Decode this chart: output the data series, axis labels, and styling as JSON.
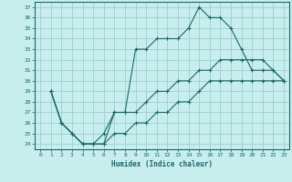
{
  "title": "",
  "xlabel": "Humidex (Indice chaleur)",
  "ylabel": "",
  "bg_color": "#c8eded",
  "grid_color": "#9ecece",
  "line_color": "#1a6868",
  "xlim": [
    -0.5,
    23.5
  ],
  "ylim": [
    23.5,
    37.5
  ],
  "xticks": [
    0,
    1,
    2,
    3,
    4,
    5,
    6,
    7,
    8,
    9,
    10,
    11,
    12,
    13,
    14,
    15,
    16,
    17,
    18,
    19,
    20,
    21,
    22,
    23
  ],
  "yticks": [
    24,
    25,
    26,
    27,
    28,
    29,
    30,
    31,
    32,
    33,
    34,
    35,
    36,
    37
  ],
  "line1_x": [
    1,
    2,
    3,
    4,
    5,
    6,
    7,
    8,
    9,
    10,
    11,
    12,
    13,
    14,
    15,
    16,
    17,
    18,
    19,
    20,
    21,
    22,
    23
  ],
  "line1_y": [
    29,
    26,
    25,
    24,
    24,
    24,
    27,
    27,
    33,
    33,
    34,
    34,
    34,
    35,
    37,
    36,
    36,
    35,
    33,
    31,
    31,
    31,
    30
  ],
  "line2_x": [
    1,
    2,
    3,
    4,
    5,
    6,
    7,
    8,
    9,
    10,
    11,
    12,
    13,
    14,
    15,
    16,
    17,
    18,
    19,
    20,
    21,
    22,
    23
  ],
  "line2_y": [
    29,
    26,
    25,
    24,
    24,
    25,
    27,
    27,
    27,
    28,
    29,
    29,
    30,
    30,
    31,
    31,
    32,
    32,
    32,
    32,
    32,
    31,
    30
  ],
  "line3_x": [
    1,
    2,
    3,
    4,
    5,
    6,
    7,
    8,
    9,
    10,
    11,
    12,
    13,
    14,
    15,
    16,
    17,
    18,
    19,
    20,
    21,
    22,
    23
  ],
  "line3_y": [
    29,
    26,
    25,
    24,
    24,
    24,
    25,
    25,
    26,
    26,
    27,
    27,
    28,
    28,
    29,
    30,
    30,
    30,
    30,
    30,
    30,
    30,
    30
  ]
}
